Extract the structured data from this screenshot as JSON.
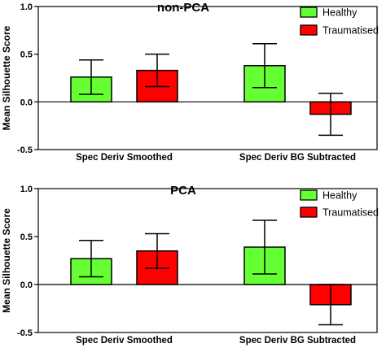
{
  "ylabel": "Mean Silhouette Score",
  "legend": [
    {
      "label": "Healthy",
      "color": "#66ff33"
    },
    {
      "label": "Traumatised",
      "color": "#ff0000"
    }
  ],
  "chart_data": [
    {
      "type": "bar",
      "title": "non-PCA",
      "categories": [
        "Spec Deriv Smoothed",
        "Spec Deriv BG Subtracted"
      ],
      "series": [
        {
          "name": "Healthy",
          "values": [
            0.26,
            0.38
          ],
          "errors": [
            0.18,
            0.23
          ]
        },
        {
          "name": "Traumatised",
          "values": [
            0.33,
            -0.13
          ],
          "errors": [
            0.17,
            0.22
          ]
        }
      ],
      "ylabel": "Mean Silhouette Score",
      "ylim": [
        -0.5,
        1.0
      ],
      "yticks": [
        "1.0",
        "0.5",
        "0.0",
        "-0.5"
      ],
      "legend_position": "top-right"
    },
    {
      "type": "bar",
      "title": "PCA",
      "categories": [
        "Spec Deriv Smoothed",
        "Spec Deriv BG Subtracted"
      ],
      "series": [
        {
          "name": "Healthy",
          "values": [
            0.27,
            0.39
          ],
          "errors": [
            0.19,
            0.28
          ]
        },
        {
          "name": "Traumatised",
          "values": [
            0.35,
            -0.21
          ],
          "errors": [
            0.18,
            0.21
          ]
        }
      ],
      "ylabel": "Mean Silhouette Score",
      "ylim": [
        -0.5,
        1.0
      ],
      "yticks": [
        "1.0",
        "0.5",
        "0.0",
        "-0.5"
      ],
      "legend_position": "top-right"
    }
  ]
}
